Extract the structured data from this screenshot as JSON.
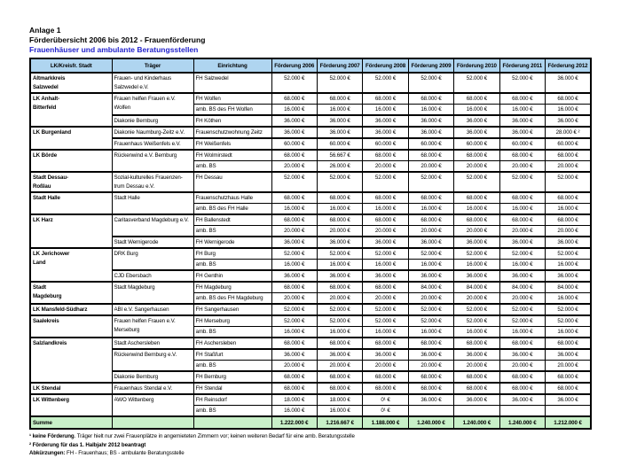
{
  "document": {
    "line1": "Anlage 1",
    "line2": "Förderübersicht 2006 bis 2012 - Frauenförderung",
    "line3": "Frauenhäuser und ambulante Beratungsstellen"
  },
  "colors": {
    "header_fill": "#AFD5F0",
    "sum_fill": "#C8F0C8",
    "subtitle_blue": "#2222CC"
  },
  "table": {
    "headers": [
      "LK/Kreisfr. Stadt",
      "Träger",
      "Einrichtung",
      "Förderung 2006",
      "Förderung 2007",
      "Förderung 2008",
      "Förderung 2009",
      "Förderung 2010",
      "Förderung 2011",
      "Förderung 2012"
    ],
    "groups": [
      {
        "lk": [
          "Altmarkkreis",
          "Salzwedel"
        ],
        "blocks": [
          {
            "traeger": [
              "Frauen- und Kinderhaus",
              "Salzwedel e.V."
            ],
            "rows": [
              {
                "einrichtung": "FH Salzwedel",
                "tall": true,
                "values": [
                  "52.000 €",
                  "52.000 €",
                  "52.000 €",
                  "52.000 €",
                  "52.000 €",
                  "52.000 €",
                  "36.000 €"
                ]
              }
            ]
          }
        ]
      },
      {
        "lk": [
          "LK Anhalt-",
          "Bitterfeld"
        ],
        "blocks": [
          {
            "traeger": [
              "Frauen helfen Frauen e.V.",
              "Wolfen"
            ],
            "rows": [
              {
                "einrichtung": "FH Wolfen",
                "values": [
                  "68.000 €",
                  "68.000 €",
                  "68.000 €",
                  "68.000 €",
                  "68.000 €",
                  "68.000 €",
                  "68.000 €"
                ]
              },
              {
                "einrichtung": "amb. BS des FH Wolfen",
                "values": [
                  "16.000 €",
                  "16.000 €",
                  "16.000 €",
                  "16.000 €",
                  "16.000 €",
                  "16.000 €",
                  "16.000 €"
                ]
              }
            ]
          },
          {
            "traeger": [
              "Diakonie Bernburg"
            ],
            "rows": [
              {
                "einrichtung": "FH Köthen",
                "values": [
                  "36.000 €",
                  "36.000 €",
                  "36.000 €",
                  "36.000 €",
                  "36.000 €",
                  "36.000 €",
                  "36.000 €"
                ]
              }
            ]
          }
        ]
      },
      {
        "lk": [
          "LK Burgenland"
        ],
        "blocks": [
          {
            "traeger": [
              "Diakonie Naumburg-Zeitz e.V."
            ],
            "rows": [
              {
                "einrichtung": "Frauenschutzwohnung Zeitz",
                "values": [
                  "36.000 €",
                  "36.000 €",
                  "36.000 €",
                  "36.000 €",
                  "36.000 €",
                  "36.000 €",
                  "28.000 € ²"
                ]
              }
            ]
          },
          {
            "traeger": [
              "Frauenhaus Weißenfels e.V."
            ],
            "rows": [
              {
                "einrichtung": "FH Weißenfels",
                "values": [
                  "60.000 €",
                  "60.000 €",
                  "60.000 €",
                  "60.000 €",
                  "60.000 €",
                  "60.000 €",
                  "60.000 €"
                ]
              }
            ]
          }
        ]
      },
      {
        "lk": [
          "LK Börde"
        ],
        "blocks": [
          {
            "traeger": [
              "Rückenwind e.V. Bernburg"
            ],
            "rows": [
              {
                "einrichtung": "FH Wolmirstedt",
                "values": [
                  "68.000 €",
                  "56.667 €",
                  "68.000 €",
                  "68.000 €",
                  "68.000 €",
                  "68.000 €",
                  "68.000 €"
                ]
              },
              {
                "einrichtung": "amb. BS",
                "values": [
                  "20.000 €",
                  "26.000 €",
                  "20.000 €",
                  "20.000 €",
                  "20.000 €",
                  "20.000 €",
                  "20.000 €"
                ]
              }
            ]
          }
        ]
      },
      {
        "lk": [
          "Stadt Dessau-",
          "Roßlau"
        ],
        "blocks": [
          {
            "traeger": [
              "Sozial-kulturelles Frauenzen-",
              "trum Dessau e.V."
            ],
            "rows": [
              {
                "einrichtung": "FH Dessau",
                "tall": true,
                "values": [
                  "52.000 €",
                  "52.000 €",
                  "52.000 €",
                  "52.000 €",
                  "52.000 €",
                  "52.000 €",
                  "52.000 €"
                ]
              }
            ]
          }
        ]
      },
      {
        "lk": [
          "Stadt Halle"
        ],
        "blocks": [
          {
            "traeger": [
              "Stadt Halle"
            ],
            "rows": [
              {
                "einrichtung": "Frauenschutzhaus Halle",
                "values": [
                  "68.000 €",
                  "68.000 €",
                  "68.000 €",
                  "68.000 €",
                  "68.000 €",
                  "68.000 €",
                  "68.000 €"
                ]
              },
              {
                "einrichtung": "amb. BS des FH Halle",
                "values": [
                  "16.000 €",
                  "16.000 €",
                  "16.000 €",
                  "16.000 €",
                  "16.000 €",
                  "16.000 €",
                  "16.000 €"
                ]
              }
            ]
          }
        ]
      },
      {
        "lk": [
          "LK Harz"
        ],
        "blocks": [
          {
            "traeger": [
              "Caritasverband Magdeburg e.V."
            ],
            "rows": [
              {
                "einrichtung": "FH Ballenstedt",
                "values": [
                  "68.000 €",
                  "68.000 €",
                  "68.000 €",
                  "68.000 €",
                  "68.000 €",
                  "68.000 €",
                  "68.000 €"
                ]
              },
              {
                "einrichtung": "amb. BS",
                "values": [
                  "20.000 €",
                  "20.000 €",
                  "20.000 €",
                  "20.000 €",
                  "20.000 €",
                  "20.000 €",
                  "20.000 €"
                ]
              }
            ]
          },
          {
            "traeger": [
              "Stadt Wernigerode"
            ],
            "rows": [
              {
                "einrichtung": "FH Wernigerode",
                "values": [
                  "36.000 €",
                  "36.000 €",
                  "36.000 €",
                  "36.000 €",
                  "36.000 €",
                  "36.000 €",
                  "36.000 €"
                ]
              }
            ]
          }
        ]
      },
      {
        "lk": [
          "LK Jerichower",
          "Land"
        ],
        "blocks": [
          {
            "traeger": [
              "DRK Burg"
            ],
            "rows": [
              {
                "einrichtung": "FH Burg",
                "values": [
                  "52.000 €",
                  "52.000 €",
                  "52.000 €",
                  "52.000 €",
                  "52.000 €",
                  "52.000 €",
                  "52.000 €"
                ]
              },
              {
                "einrichtung": "amb. BS",
                "values": [
                  "16.000 €",
                  "16.000 €",
                  "16.000 €",
                  "16.000 €",
                  "16.000 €",
                  "16.000 €",
                  "16.000 €"
                ]
              }
            ]
          },
          {
            "traeger": [
              "CJD Ebersbach"
            ],
            "rows": [
              {
                "einrichtung": "FH Genthin",
                "values": [
                  "36.000 €",
                  "36.000 €",
                  "36.000 €",
                  "36.000 €",
                  "36.000 €",
                  "36.000 €",
                  "36.000 €"
                ]
              }
            ]
          }
        ]
      },
      {
        "lk": [
          "Stadt",
          "Magdeburg"
        ],
        "blocks": [
          {
            "traeger": [
              "Stadt Magdeburg"
            ],
            "rows": [
              {
                "einrichtung": "FH Magdeburg",
                "values": [
                  "68.000 €",
                  "68.000 €",
                  "68.000 €",
                  "84.000 €",
                  "84.000 €",
                  "84.000 €",
                  "84.000 €"
                ]
              },
              {
                "einrichtung": "amb. BS des FH Magdeburg",
                "values": [
                  "20.000 €",
                  "20.000 €",
                  "20.000 €",
                  "20.000 €",
                  "20.000 €",
                  "20.000 €",
                  "16.000 €"
                ]
              }
            ]
          }
        ]
      },
      {
        "lk": [
          "LK Mansfeld-Südharz"
        ],
        "blocks": [
          {
            "traeger": [
              "ABI e.V. Sangerhausen"
            ],
            "rows": [
              {
                "einrichtung": "FH Sangerhausen",
                "values": [
                  "52.000 €",
                  "52.000 €",
                  "52.000 €",
                  "52.000 €",
                  "52.000 €",
                  "52.000 €",
                  "52.000 €"
                ]
              }
            ]
          }
        ]
      },
      {
        "lk": [
          "Saalekreis"
        ],
        "blocks": [
          {
            "traeger": [
              "Frauen helfen Frauen e.V.",
              "Merseburg"
            ],
            "rows": [
              {
                "einrichtung": "FH Merseburg",
                "values": [
                  "52.000 €",
                  "52.000 €",
                  "52.000 €",
                  "52.000 €",
                  "52.000 €",
                  "52.000 €",
                  "52.000 €"
                ]
              },
              {
                "einrichtung": "amb. BS",
                "values": [
                  "16.000 €",
                  "16.000 €",
                  "16.000 €",
                  "16.000 €",
                  "16.000 €",
                  "16.000 €",
                  "16.000 €"
                ]
              }
            ]
          }
        ]
      },
      {
        "lk": [
          "Salzlandkreis"
        ],
        "blocks": [
          {
            "traeger": [
              "Stadt Aschersleben"
            ],
            "rows": [
              {
                "einrichtung": "FH Aschersleben",
                "values": [
                  "68.000 €",
                  "68.000 €",
                  "68.000 €",
                  "68.000 €",
                  "68.000 €",
                  "68.000 €",
                  "68.000 €"
                ]
              }
            ]
          },
          {
            "traeger": [
              "Rückenwind Bernburg e.V."
            ],
            "rows": [
              {
                "einrichtung": "FH Staßfurt",
                "values": [
                  "36.000 €",
                  "36.000 €",
                  "36.000 €",
                  "36.000 €",
                  "36.000 €",
                  "36.000 €",
                  "36.000 €"
                ]
              },
              {
                "einrichtung": "amb. BS",
                "values": [
                  "20.000 €",
                  "20.000 €",
                  "20.000 €",
                  "20.000 €",
                  "20.000 €",
                  "20.000 €",
                  "20.000 €"
                ]
              }
            ]
          },
          {
            "traeger": [
              "Diakonie Bernburg"
            ],
            "rows": [
              {
                "einrichtung": "FH Bernburg",
                "values": [
                  "68.000 €",
                  "68.000 €",
                  "68.000 €",
                  "68.000 €",
                  "68.000 €",
                  "68.000 €",
                  "68.000 €"
                ]
              }
            ]
          }
        ]
      },
      {
        "lk": [
          "LK Stendal"
        ],
        "blocks": [
          {
            "traeger": [
              "Frauenhaus Stendal e.V."
            ],
            "rows": [
              {
                "einrichtung": "FH Stendal",
                "values": [
                  "68.000 €",
                  "68.000 €",
                  "68.000 €",
                  "68.000 €",
                  "68.000 €",
                  "68.000 €",
                  "68.000 €"
                ]
              }
            ]
          }
        ]
      },
      {
        "lk": [
          "LK Wittenberg"
        ],
        "blocks": [
          {
            "traeger": [
              "AWO Wittenberg"
            ],
            "rows": [
              {
                "einrichtung": "FH Reinsdorf",
                "values": [
                  "18.000 €",
                  "18.000 €",
                  "0¹ €",
                  "36.000 €",
                  "36.000 €",
                  "36.000 €",
                  "36.000 €"
                ]
              },
              {
                "einrichtung": "amb. BS",
                "values": [
                  "16.000 €",
                  "16.000 €",
                  "0¹ €",
                  "",
                  "",
                  "",
                  ""
                ]
              }
            ]
          }
        ]
      }
    ],
    "summe": {
      "label": "Summe",
      "values": [
        "1.222.000 €",
        "1.216.667 €",
        "1.188.000 €",
        "1.240.000 €",
        "1.240.000 €",
        "1.240.000 €",
        "1.212.000 €"
      ]
    }
  },
  "footnotes": [
    {
      "bold": "¹ keine Förderung",
      "rest": ". Träger hielt nur zwei Frauenplätze in angemieteten Zimmern vor; keinen weiteren Bedarf für eine amb. Beratungsstelle"
    },
    {
      "bold": "² Förderung für das 1. Halbjahr 2012 beantragt",
      "rest": ""
    },
    {
      "bold": "Abkürzungen:",
      "rest": " FH - Frauenhaus; BS - ambulante Beratungsstelle"
    }
  ]
}
